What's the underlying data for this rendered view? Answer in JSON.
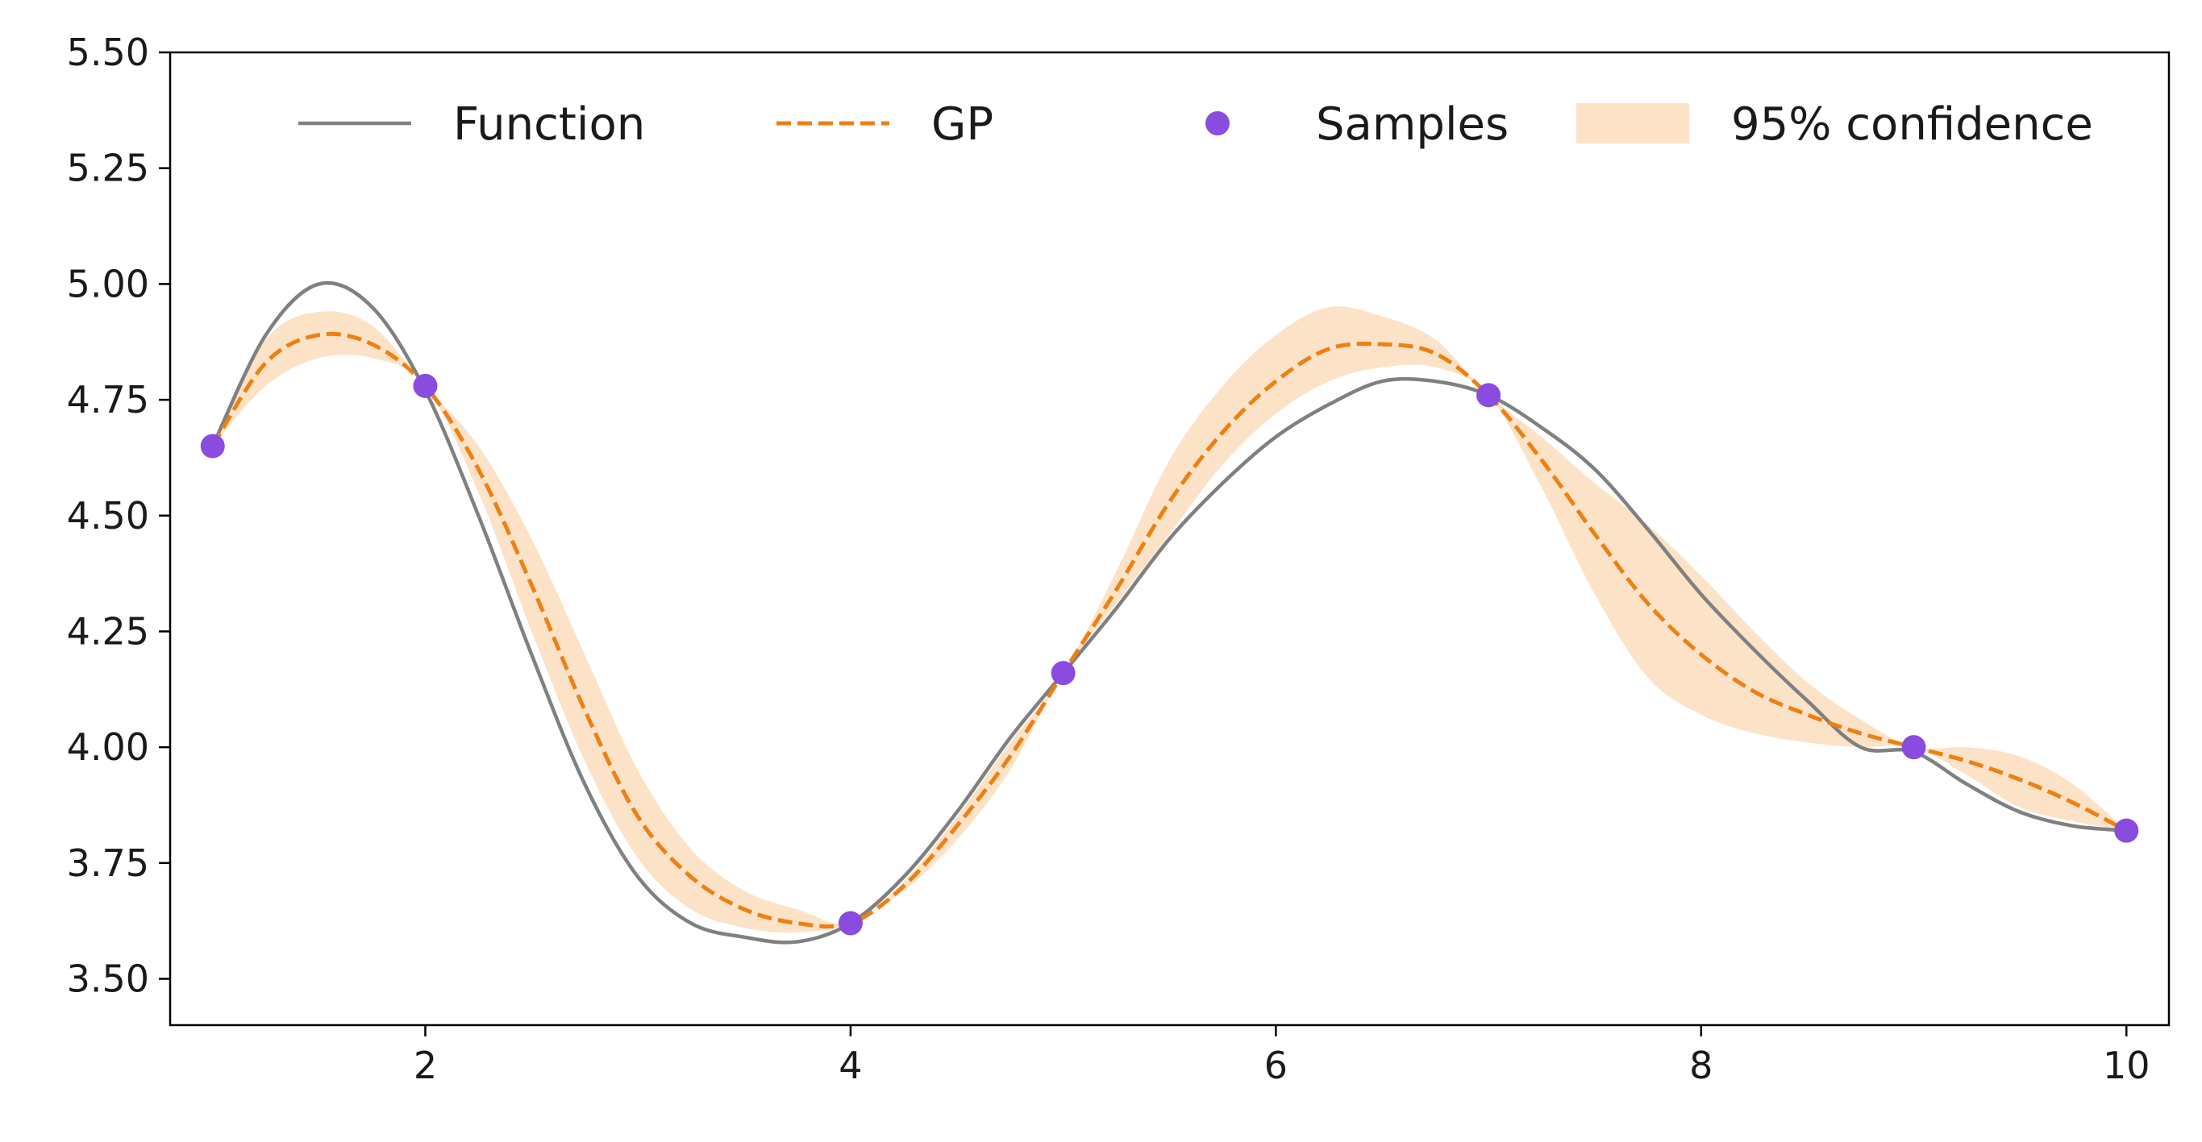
{
  "chart_data": {
    "type": "line",
    "title": "",
    "xlabel": "",
    "ylabel": "",
    "xlim": [
      0.8,
      10.2
    ],
    "ylim": [
      3.4,
      5.5
    ],
    "x_ticks": [
      2,
      4,
      6,
      8,
      10
    ],
    "y_ticks": [
      3.5,
      3.75,
      4.0,
      4.25,
      4.5,
      4.75,
      5.0,
      5.25,
      5.5
    ],
    "x_tick_labels": [
      "2",
      "4",
      "6",
      "8",
      "10"
    ],
    "y_tick_labels": [
      "3.50",
      "3.75",
      "4.00",
      "4.25",
      "4.50",
      "4.75",
      "5.00",
      "5.25",
      "5.50"
    ],
    "grid": false,
    "legend": {
      "placement": "top",
      "columns": 4,
      "entries": [
        {
          "label": "Function",
          "kind": "line",
          "color": "#808080"
        },
        {
          "label": "GP",
          "kind": "dashed",
          "color": "#f07f12"
        },
        {
          "label": "Samples",
          "kind": "marker",
          "color": "#8a4bdf"
        },
        {
          "label": "95% confidence",
          "kind": "band",
          "color": "#fce3c8"
        }
      ]
    },
    "series": [
      {
        "name": "Function",
        "style": "solid",
        "color": "#808080",
        "points": [
          [
            1.0,
            4.65
          ],
          [
            1.25,
            4.89
          ],
          [
            1.5,
            5.0
          ],
          [
            1.75,
            4.95
          ],
          [
            2.0,
            4.77
          ],
          [
            2.25,
            4.5
          ],
          [
            2.5,
            4.2
          ],
          [
            2.75,
            3.92
          ],
          [
            3.0,
            3.72
          ],
          [
            3.25,
            3.62
          ],
          [
            3.5,
            3.59
          ],
          [
            3.75,
            3.58
          ],
          [
            4.0,
            3.62
          ],
          [
            4.25,
            3.72
          ],
          [
            4.5,
            3.86
          ],
          [
            4.75,
            4.02
          ],
          [
            5.0,
            4.16
          ],
          [
            5.25,
            4.3
          ],
          [
            5.5,
            4.45
          ],
          [
            5.75,
            4.57
          ],
          [
            6.0,
            4.67
          ],
          [
            6.25,
            4.74
          ],
          [
            6.5,
            4.79
          ],
          [
            6.75,
            4.79
          ],
          [
            7.0,
            4.76
          ],
          [
            7.25,
            4.69
          ],
          [
            7.5,
            4.6
          ],
          [
            7.75,
            4.47
          ],
          [
            8.0,
            4.33
          ],
          [
            8.25,
            4.21
          ],
          [
            8.5,
            4.1
          ],
          [
            8.75,
            4.0
          ],
          [
            9.0,
            3.99
          ],
          [
            9.25,
            3.92
          ],
          [
            9.5,
            3.86
          ],
          [
            9.75,
            3.83
          ],
          [
            10.0,
            3.82
          ]
        ]
      },
      {
        "name": "GP",
        "style": "dashed",
        "color": "#f07f12",
        "points": [
          [
            1.0,
            4.65
          ],
          [
            1.25,
            4.83
          ],
          [
            1.5,
            4.89
          ],
          [
            1.75,
            4.87
          ],
          [
            2.0,
            4.78
          ],
          [
            2.25,
            4.6
          ],
          [
            2.5,
            4.35
          ],
          [
            2.75,
            4.08
          ],
          [
            3.0,
            3.85
          ],
          [
            3.25,
            3.72
          ],
          [
            3.5,
            3.65
          ],
          [
            3.75,
            3.62
          ],
          [
            4.0,
            3.62
          ],
          [
            4.25,
            3.7
          ],
          [
            4.5,
            3.83
          ],
          [
            4.75,
            3.98
          ],
          [
            5.0,
            4.16
          ],
          [
            5.25,
            4.34
          ],
          [
            5.5,
            4.53
          ],
          [
            5.75,
            4.68
          ],
          [
            6.0,
            4.79
          ],
          [
            6.25,
            4.86
          ],
          [
            6.5,
            4.87
          ],
          [
            6.75,
            4.85
          ],
          [
            7.0,
            4.76
          ],
          [
            7.25,
            4.62
          ],
          [
            7.5,
            4.46
          ],
          [
            7.75,
            4.31
          ],
          [
            8.0,
            4.2
          ],
          [
            8.25,
            4.12
          ],
          [
            8.5,
            4.07
          ],
          [
            8.75,
            4.03
          ],
          [
            9.0,
            4.0
          ],
          [
            9.25,
            3.97
          ],
          [
            9.5,
            3.93
          ],
          [
            9.75,
            3.88
          ],
          [
            10.0,
            3.82
          ]
        ]
      }
    ],
    "confidence_band": {
      "name": "95% confidence",
      "color": "#fce3c8",
      "x": [
        1.0,
        1.25,
        1.5,
        1.75,
        2.0,
        2.25,
        2.5,
        2.75,
        3.0,
        3.25,
        3.5,
        3.75,
        4.0,
        4.25,
        4.5,
        4.75,
        5.0,
        5.25,
        5.5,
        5.75,
        6.0,
        6.25,
        6.5,
        6.75,
        7.0,
        7.25,
        7.5,
        7.75,
        8.0,
        8.25,
        8.5,
        8.75,
        9.0,
        9.25,
        9.5,
        9.75,
        10.0
      ],
      "lower": [
        4.65,
        4.78,
        4.84,
        4.84,
        4.78,
        4.55,
        4.25,
        3.97,
        3.76,
        3.65,
        3.61,
        3.6,
        3.62,
        3.69,
        3.8,
        3.95,
        4.16,
        4.31,
        4.46,
        4.61,
        4.72,
        4.79,
        4.82,
        4.82,
        4.76,
        4.56,
        4.33,
        4.15,
        4.07,
        4.03,
        4.01,
        4.0,
        4.0,
        3.94,
        3.87,
        3.84,
        3.82
      ],
      "upper": [
        4.65,
        4.88,
        4.94,
        4.91,
        4.78,
        4.65,
        4.45,
        4.2,
        3.95,
        3.78,
        3.69,
        3.65,
        3.62,
        3.71,
        3.85,
        4.01,
        4.16,
        4.38,
        4.62,
        4.78,
        4.89,
        4.95,
        4.93,
        4.88,
        4.76,
        4.67,
        4.57,
        4.48,
        4.37,
        4.25,
        4.14,
        4.06,
        4.0,
        4.0,
        3.98,
        3.92,
        3.82
      ]
    },
    "samples": {
      "name": "Samples",
      "color": "#8a4bdf",
      "x": [
        1,
        2,
        4,
        5,
        7,
        9,
        10
      ],
      "y": [
        4.65,
        4.78,
        3.62,
        4.16,
        4.76,
        4.0,
        3.82
      ]
    }
  }
}
